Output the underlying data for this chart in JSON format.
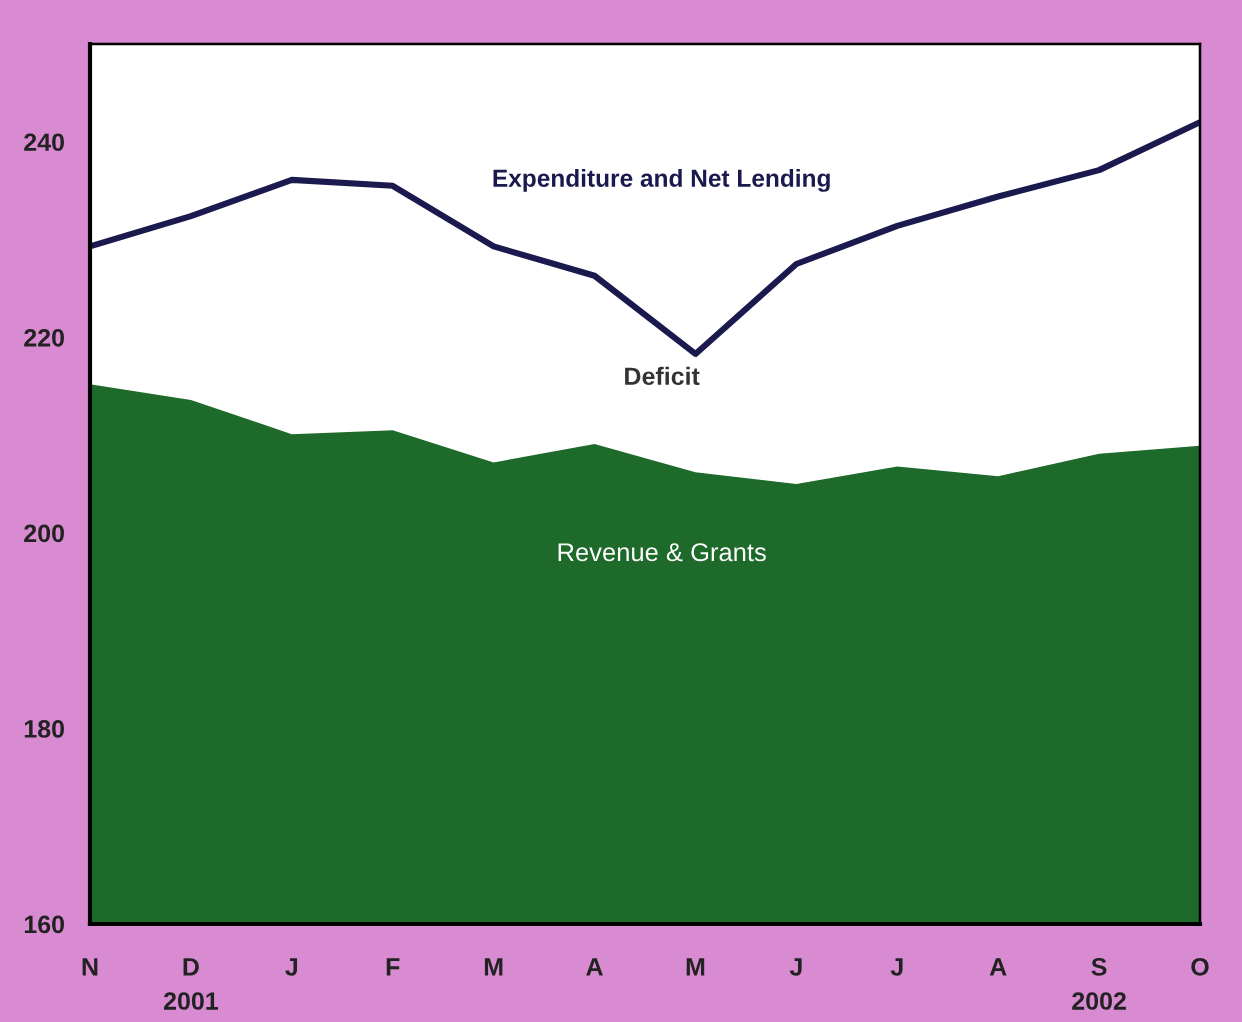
{
  "chart_data": {
    "type": "area",
    "categories": [
      "N",
      "D\n2001",
      "J",
      "F",
      "M",
      "A",
      "M",
      "J",
      "J",
      "A",
      "S\n2002",
      "O"
    ],
    "series": [
      {
        "name": "Revenue & Grants",
        "color": "#1e6a2b",
        "values": [
          215.2,
          213.6,
          210.1,
          210.5,
          207.2,
          209.1,
          206.2,
          205.0,
          206.8,
          205.8,
          208.1,
          208.9
        ]
      },
      {
        "name": "Expenditure and Net Lending",
        "type": "line",
        "color": "#1b1a4e",
        "values": [
          229.3,
          232.4,
          236.1,
          235.5,
          229.3,
          226.3,
          218.3,
          227.5,
          231.4,
          234.4,
          237.1,
          242.0
        ]
      }
    ],
    "annotations": [
      "Deficit"
    ],
    "ylim": [
      160,
      250
    ],
    "yticks": [
      160,
      180,
      200,
      220,
      240
    ],
    "grid": false,
    "legend": false,
    "marker": "none",
    "line_style": "solid"
  }
}
